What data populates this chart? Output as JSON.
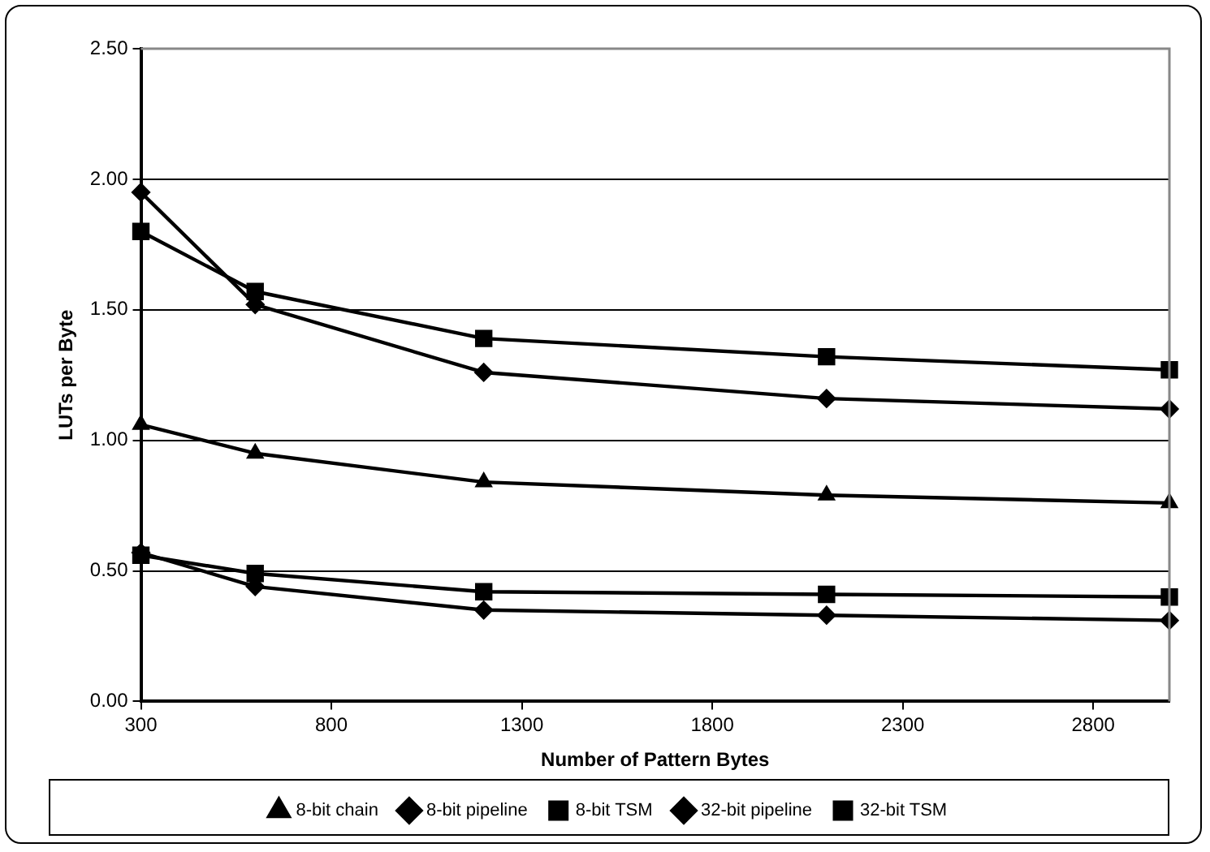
{
  "chart_data": {
    "type": "line",
    "xlabel": "Number of Pattern Bytes",
    "ylabel": "LUTs per Byte",
    "x": [
      300,
      600,
      1200,
      2100,
      3000
    ],
    "series": [
      {
        "name": "8-bit chain",
        "color": "#000000",
        "marker": "triangle",
        "values": [
          1.06,
          0.95,
          0.84,
          0.79,
          0.76
        ]
      },
      {
        "name": "8-bit pipeline",
        "color": "#000000",
        "marker": "diamond",
        "values": [
          0.57,
          0.44,
          0.35,
          0.33,
          0.31
        ]
      },
      {
        "name": "8-bit TSM",
        "color": "#000000",
        "marker": "square",
        "values": [
          0.56,
          0.49,
          0.42,
          0.41,
          0.4
        ]
      },
      {
        "name": "32-bit pipeline",
        "color": "#000000",
        "marker": "diamond",
        "values": [
          1.95,
          1.52,
          1.26,
          1.16,
          1.12
        ]
      },
      {
        "name": "32-bit TSM",
        "color": "#000000",
        "marker": "square",
        "values": [
          1.8,
          1.57,
          1.39,
          1.32,
          1.27
        ]
      }
    ],
    "xlim": [
      300,
      3000
    ],
    "xticks": [
      300,
      800,
      1300,
      1800,
      2300,
      2800
    ],
    "ylim": [
      0,
      2.5
    ],
    "yticks": [
      {
        "value": 0,
        "label": "0.00"
      },
      {
        "value": 0.5,
        "label": "0.50"
      },
      {
        "value": 1,
        "label": "1.00"
      },
      {
        "value": 1.5,
        "label": "1.50"
      },
      {
        "value": 2,
        "label": "2.00"
      },
      {
        "value": 2.5,
        "label": "2.50"
      }
    ],
    "grid": "y",
    "legend": "bottom",
    "line_style": "solid"
  }
}
